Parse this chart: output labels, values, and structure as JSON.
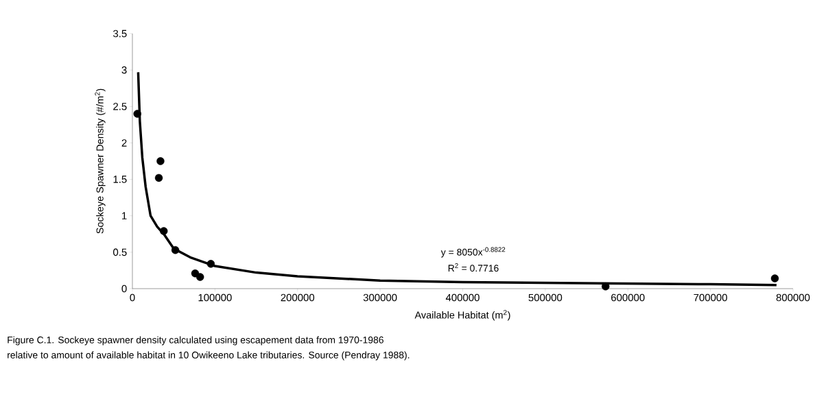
{
  "chart_data": {
    "type": "scatter",
    "xlabel": "Available Habitat (m$^{2}$)",
    "ylabel": "Sockeye Spawner Density (#/m$^{2}$)",
    "xlim": [
      0,
      800000
    ],
    "xticks": [
      0,
      100000,
      200000,
      300000,
      400000,
      500000,
      600000,
      700000,
      800000
    ],
    "ylim": [
      0,
      3.5
    ],
    "yticks": [
      0,
      0.5,
      1,
      1.5,
      2,
      2.5,
      3,
      3.5
    ],
    "grid": false,
    "series": [
      {
        "marker": "circle",
        "color": "#000000",
        "x": [
          6000,
          32000,
          34000,
          38000,
          52000,
          76000,
          82000,
          95000,
          573000,
          778000
        ],
        "values": [
          2.4,
          1.52,
          1.75,
          0.79,
          0.53,
          0.21,
          0.16,
          0.34,
          0.03,
          0.14
        ]
      },
      {
        "type": "line",
        "marker": "none",
        "color": "#000000",
        "x": [
          7000,
          9000,
          12000,
          16000,
          22000,
          30000,
          38000,
          50000,
          70000,
          100000,
          150000,
          200000,
          300000,
          400000,
          500000,
          600000,
          700000,
          780000
        ],
        "values": [
          2.97,
          2.3,
          1.8,
          1.4,
          1.0,
          0.85,
          0.75,
          0.55,
          0.43,
          0.31,
          0.22,
          0.17,
          0.11,
          0.09,
          0.08,
          0.07,
          0.06,
          0.05
        ]
      }
    ],
    "annotations": [
      "y = 8050x$^{-0.8822}$",
      "R$^{2}$ = 0.7716",
      "Figure C.1.  Sockeye spawner density calculated using escapement data from 1970-1986",
      "relative to amount of available habitat in 10 Owikeeno Lake tributaries. Source (Pendray 1988)."
    ]
  }
}
